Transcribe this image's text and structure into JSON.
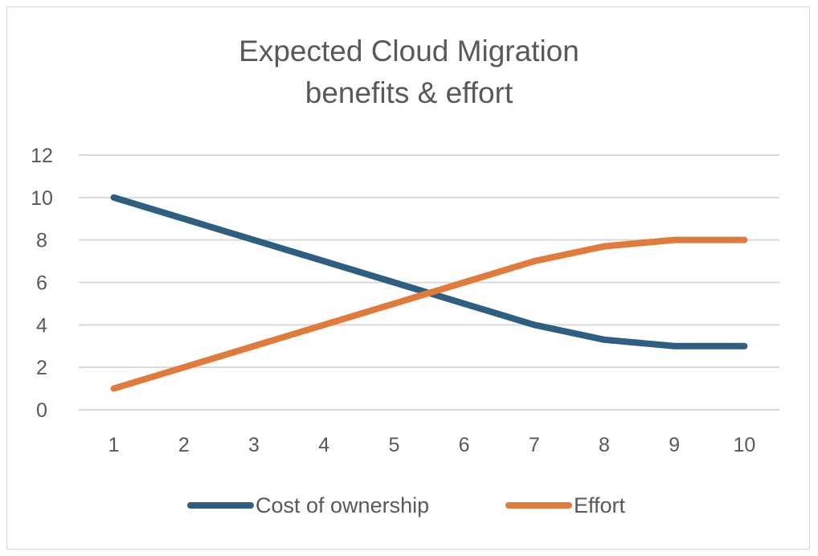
{
  "chart_data": {
    "type": "line",
    "title_lines": [
      "Expected Cloud Migration",
      "benefits & effort"
    ],
    "x": [
      "1",
      "2",
      "3",
      "4",
      "5",
      "6",
      "7",
      "8",
      "9",
      "10"
    ],
    "series": [
      {
        "name": "Cost of ownership",
        "color": "#2e5f80",
        "values": [
          10,
          9,
          8,
          7,
          6,
          5,
          4,
          3.3,
          3,
          3
        ]
      },
      {
        "name": "Effort",
        "color": "#e07b3c",
        "values": [
          1,
          2,
          3,
          4,
          5,
          6,
          7,
          7.7,
          8,
          8
        ]
      }
    ],
    "ylim": [
      0,
      12
    ],
    "yticks": [
      "0",
      "2",
      "4",
      "6",
      "8",
      "10",
      "12"
    ],
    "grid": true,
    "legend": "bottom",
    "gridline_color": "#d9d9d9",
    "axis_color": "#d9d9d9"
  }
}
